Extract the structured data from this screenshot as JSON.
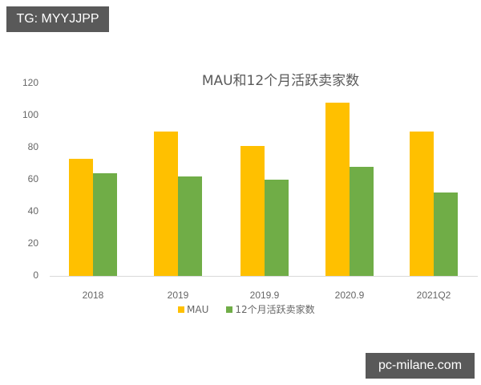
{
  "watermarks": {
    "top_left": "TG: MYYJJPP",
    "bottom_right": "pc-milane.com"
  },
  "colors": {
    "mau": "#FFC000",
    "sellers": "#70AD47",
    "axis": "#D9D9D9",
    "text": "#666666",
    "badge_bg": "#595959"
  },
  "chart_data": {
    "type": "bar",
    "title": "MAU和12个月活跃卖家数",
    "xlabel": "",
    "ylabel": "",
    "categories": [
      "2018",
      "2019",
      "2019.9",
      "2020.9",
      "2021Q2"
    ],
    "series": [
      {
        "name": "MAU",
        "color": "#FFC000",
        "values": [
          73,
          90,
          81,
          108,
          90
        ]
      },
      {
        "name": "12个月活跃卖家数",
        "color": "#70AD47",
        "values": [
          64,
          62,
          60,
          68,
          52
        ]
      }
    ],
    "yticks": [
      "0",
      "20",
      "40",
      "60",
      "80",
      "100",
      "120"
    ],
    "ylim": [
      0,
      120
    ],
    "grid": false,
    "legend_position": "bottom"
  }
}
